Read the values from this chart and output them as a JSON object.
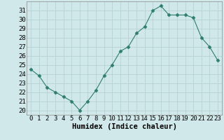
{
  "x": [
    0,
    1,
    2,
    3,
    4,
    5,
    6,
    7,
    8,
    9,
    10,
    11,
    12,
    13,
    14,
    15,
    16,
    17,
    18,
    19,
    20,
    21,
    22,
    23
  ],
  "y": [
    24.5,
    23.8,
    22.5,
    22.0,
    21.5,
    21.0,
    20.0,
    21.0,
    22.2,
    23.8,
    25.0,
    26.5,
    27.0,
    28.5,
    29.2,
    31.0,
    31.5,
    30.5,
    30.5,
    30.5,
    30.2,
    28.0,
    27.0,
    25.5
  ],
  "line_color": "#2e7d6e",
  "marker": "D",
  "marker_size": 2.5,
  "bg_color": "#d0e8ea",
  "grid_color": "#b0cdd0",
  "xlabel": "Humidex (Indice chaleur)",
  "xlim": [
    -0.5,
    23.5
  ],
  "ylim": [
    19.5,
    32.0
  ],
  "yticks": [
    20,
    21,
    22,
    23,
    24,
    25,
    26,
    27,
    28,
    29,
    30,
    31
  ],
  "xticks": [
    0,
    1,
    2,
    3,
    4,
    5,
    6,
    7,
    8,
    9,
    10,
    11,
    12,
    13,
    14,
    15,
    16,
    17,
    18,
    19,
    20,
    21,
    22,
    23
  ],
  "xlabel_fontsize": 7.5,
  "tick_fontsize": 6.5
}
